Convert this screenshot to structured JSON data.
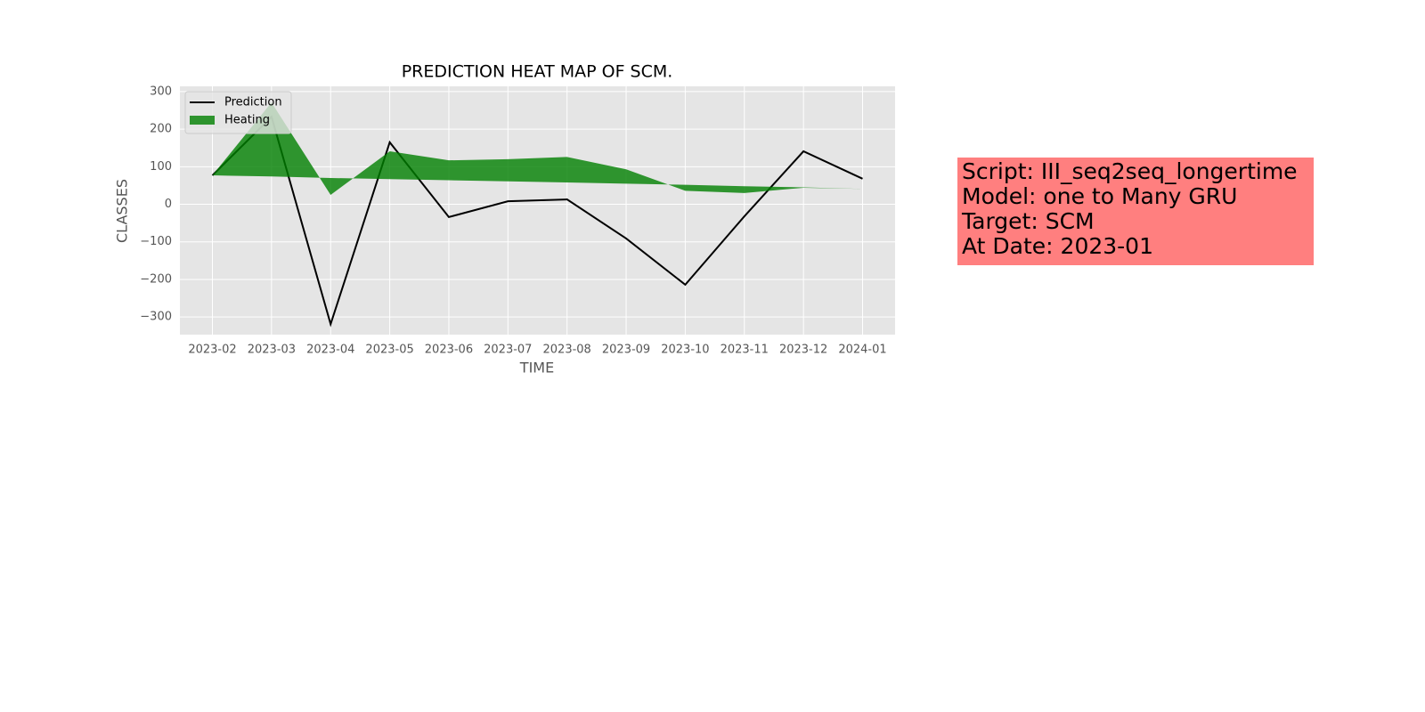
{
  "chart_data": {
    "type": "line",
    "title": "PREDICTION HEAT MAP OF SCM.",
    "x_label": "TIME",
    "y_label": "CLASSES",
    "categories": [
      "2023-02",
      "2023-03",
      "2023-04",
      "2023-05",
      "2023-06",
      "2023-07",
      "2023-08",
      "2023-09",
      "2023-10",
      "2023-11",
      "2023-12",
      "2024-01"
    ],
    "series": [
      {
        "name": "Prediction",
        "color": "#000000",
        "values": [
          77,
          233,
          -319,
          165,
          -34,
          8,
          13,
          -91,
          -214,
          -32,
          141,
          68
        ]
      },
      {
        "name": "Heating",
        "color": "#008000",
        "values": [
          77,
          271,
          25,
          141,
          117,
          120,
          126,
          93,
          36,
          30,
          44,
          41
        ],
        "lower": [
          77,
          74,
          70,
          67,
          64,
          61,
          58,
          55,
          52,
          48,
          45,
          41
        ]
      }
    ],
    "ylim": [
      -347,
      314
    ],
    "yticks": [
      {
        "value": -300,
        "label": "−300"
      },
      {
        "value": -200,
        "label": "−200"
      },
      {
        "value": -100,
        "label": "−100"
      },
      0,
      100,
      200,
      300
    ],
    "grid": true,
    "legend": "upper left",
    "annotation": {
      "lines": [
        "Script: III_seq2seq_longertime",
        "Model: one to Many GRU",
        "Target: SCM",
        "At Date: 2023-01"
      ],
      "color": "#ff7f7f"
    }
  }
}
